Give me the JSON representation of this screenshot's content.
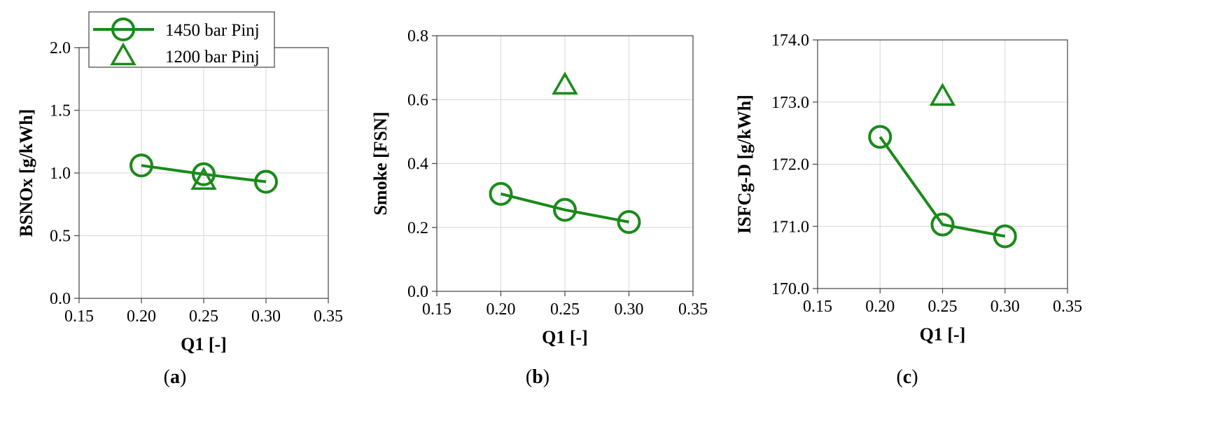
{
  "colors": {
    "series": "#1a8a1a",
    "grid": "#d6d6d6",
    "axis": "#444444"
  },
  "legend": {
    "placement": "top-right of panel (a)",
    "entries": [
      {
        "label": "1450 bar Pinj",
        "marker": "circle",
        "line": true
      },
      {
        "label": "1200 bar Pinj",
        "marker": "triangle",
        "line": false
      }
    ]
  },
  "chart_data": [
    {
      "type": "line",
      "caption": {
        "open": "(",
        "letter": "a",
        "close": ")"
      },
      "xlabel": "Q1 [-]",
      "ylabel": "BSNOx [g/kWh]",
      "xlim": [
        0.15,
        0.35
      ],
      "ylim": [
        0.0,
        2.0
      ],
      "xticks": [
        0.15,
        0.2,
        0.25,
        0.3,
        0.35
      ],
      "xtick_labels": [
        "0.15",
        "0.20",
        "0.25",
        "0.30",
        "0.35"
      ],
      "yticks": [
        0.0,
        0.5,
        1.0,
        1.5,
        2.0
      ],
      "ytick_labels": [
        "0.0",
        "0.5",
        "1.0",
        "1.5",
        "2.0"
      ],
      "grid": true,
      "series": [
        {
          "name": "1450 bar Pinj",
          "marker": "circle",
          "line": true,
          "x": [
            0.2,
            0.25,
            0.3
          ],
          "y": [
            1.06,
            0.99,
            0.93
          ]
        },
        {
          "name": "1200 bar Pinj",
          "marker": "triangle",
          "line": false,
          "x": [
            0.25
          ],
          "y": [
            0.94
          ]
        }
      ]
    },
    {
      "type": "line",
      "caption": {
        "open": "(",
        "letter": "b",
        "close": ")"
      },
      "xlabel": "Q1 [-]",
      "ylabel": "Smoke [FSN]",
      "xlim": [
        0.15,
        0.35
      ],
      "ylim": [
        0.0,
        0.8
      ],
      "xticks": [
        0.15,
        0.2,
        0.25,
        0.3,
        0.35
      ],
      "xtick_labels": [
        "0.15",
        "0.20",
        "0.25",
        "0.30",
        "0.35"
      ],
      "yticks": [
        0.0,
        0.2,
        0.4,
        0.6,
        0.8
      ],
      "ytick_labels": [
        "0.0",
        "0.2",
        "0.4",
        "0.6",
        "0.8"
      ],
      "grid": true,
      "series": [
        {
          "name": "1450 bar Pinj",
          "marker": "circle",
          "line": true,
          "x": [
            0.2,
            0.25,
            0.3
          ],
          "y": [
            0.305,
            0.255,
            0.217
          ]
        },
        {
          "name": "1200 bar Pinj",
          "marker": "triangle",
          "line": false,
          "x": [
            0.25
          ],
          "y": [
            0.645
          ]
        }
      ]
    },
    {
      "type": "line",
      "caption": {
        "open": "(",
        "letter": "c",
        "close": ")"
      },
      "xlabel": "Q1 [-]",
      "ylabel": "ISFCg-D [g/kWh]",
      "xlim": [
        0.15,
        0.35
      ],
      "ylim": [
        170.0,
        174.0
      ],
      "xticks": [
        0.15,
        0.2,
        0.25,
        0.3,
        0.35
      ],
      "xtick_labels": [
        "0.15",
        "0.20",
        "0.25",
        "0.30",
        "0.35"
      ],
      "yticks": [
        170.0,
        171.0,
        172.0,
        173.0,
        174.0
      ],
      "ytick_labels": [
        "170.0",
        "171.0",
        "172.0",
        "173.0",
        "174.0"
      ],
      "grid": true,
      "series": [
        {
          "name": "1450 bar Pinj",
          "marker": "circle",
          "line": true,
          "x": [
            0.2,
            0.25,
            0.3
          ],
          "y": [
            172.44,
            171.03,
            170.84
          ]
        },
        {
          "name": "1200 bar Pinj",
          "marker": "triangle",
          "line": false,
          "x": [
            0.25
          ],
          "y": [
            173.09
          ]
        }
      ]
    }
  ]
}
